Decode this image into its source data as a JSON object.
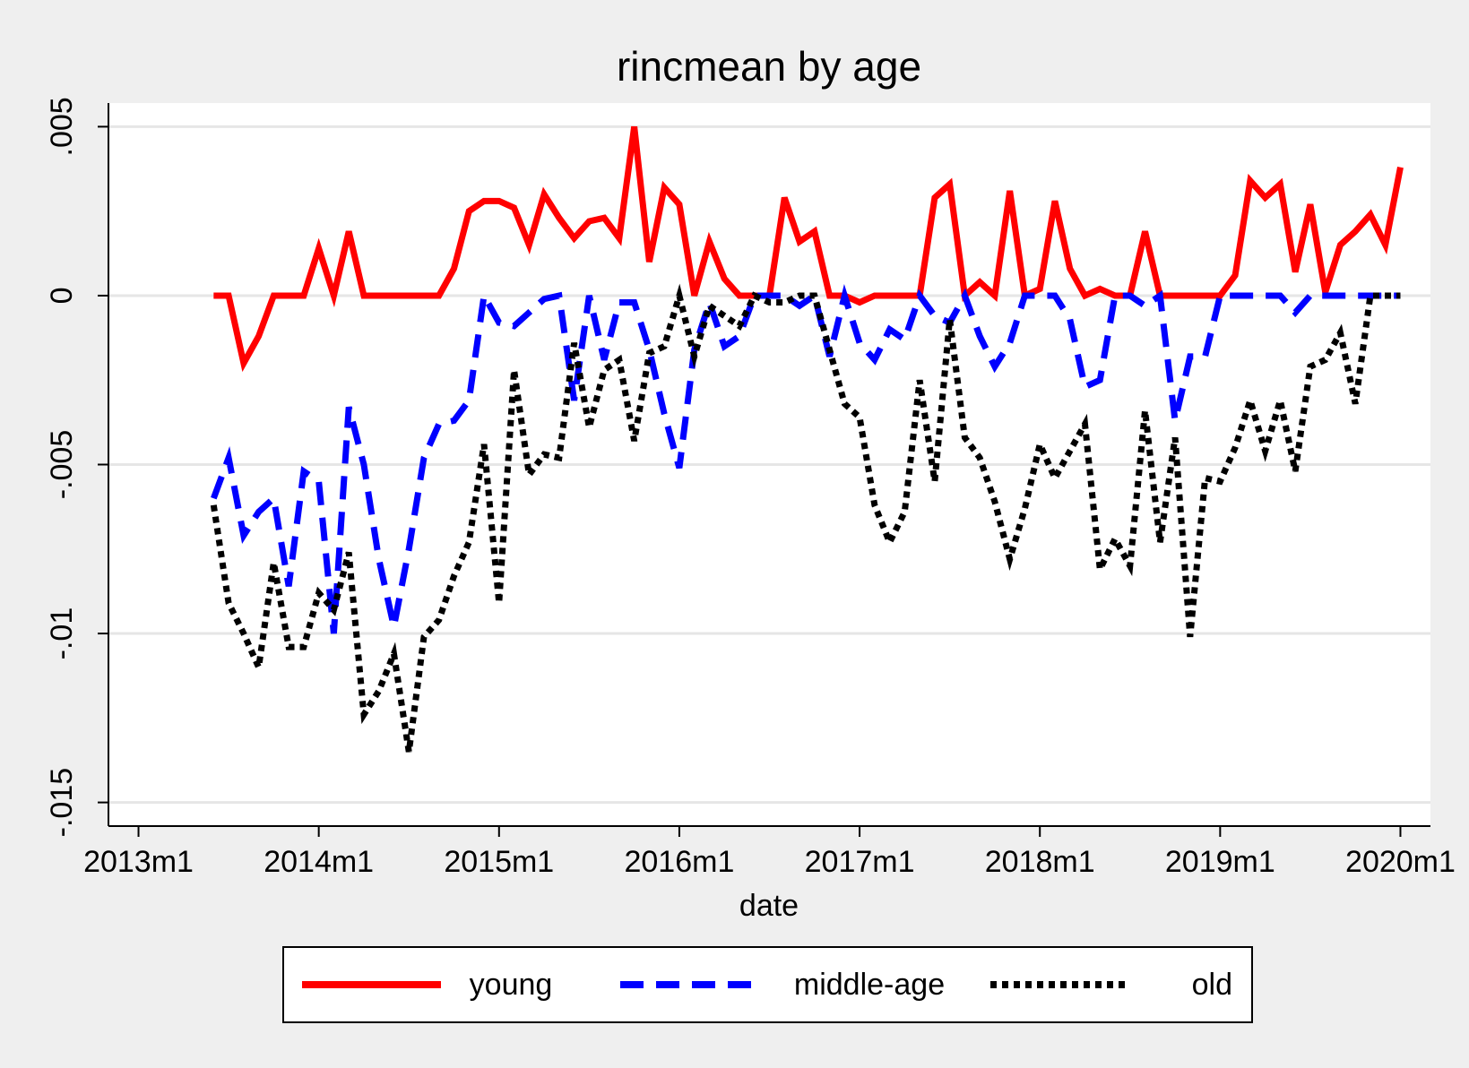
{
  "chart_data": {
    "type": "line",
    "title": "rincmean by age",
    "x_label": "date",
    "x": [
      "2013m6",
      "2013m7",
      "2013m8",
      "2013m9",
      "2013m10",
      "2013m11",
      "2013m12",
      "2014m1",
      "2014m2",
      "2014m3",
      "2014m4",
      "2014m5",
      "2014m6",
      "2014m7",
      "2014m8",
      "2014m9",
      "2014m10",
      "2014m11",
      "2014m12",
      "2015m1",
      "2015m2",
      "2015m3",
      "2015m4",
      "2015m5",
      "2015m6",
      "2015m7",
      "2015m8",
      "2015m9",
      "2015m10",
      "2015m11",
      "2015m12",
      "2016m1",
      "2016m2",
      "2016m3",
      "2016m4",
      "2016m5",
      "2016m6",
      "2016m7",
      "2016m8",
      "2016m9",
      "2016m10",
      "2016m11",
      "2016m12",
      "2017m1",
      "2017m2",
      "2017m3",
      "2017m4",
      "2017m5",
      "2017m6",
      "2017m7",
      "2017m8",
      "2017m9",
      "2017m10",
      "2017m11",
      "2017m12",
      "2018m1",
      "2018m2",
      "2018m3",
      "2018m4",
      "2018m5",
      "2018m6",
      "2018m7",
      "2018m8",
      "2018m9",
      "2018m10",
      "2018m11",
      "2018m12",
      "2019m1",
      "2019m2",
      "2019m3",
      "2019m4",
      "2019m5",
      "2019m6",
      "2019m7",
      "2019m8",
      "2019m9",
      "2019m10",
      "2019m11",
      "2019m12",
      "2020m1"
    ],
    "series": [
      {
        "name": "young",
        "color": "#ff0000",
        "dash": "solid",
        "values": [
          0,
          0,
          -0.002,
          -0.0012,
          0,
          0,
          0,
          0.0014,
          0,
          0.0019,
          0,
          0,
          0,
          0,
          0,
          0,
          0.0008,
          0.0025,
          0.0028,
          0.0028,
          0.0026,
          0.0015,
          0.003,
          0.0023,
          0.0017,
          0.0022,
          0.0023,
          0.0017,
          0.005,
          0.001,
          0.0032,
          0.0027,
          0,
          0.0016,
          0.0005,
          0,
          0,
          0,
          0.0029,
          0.0016,
          0.0019,
          0,
          0,
          -0.0002,
          0,
          0,
          0,
          0,
          0.0029,
          0.0033,
          0,
          0.0004,
          0,
          0.0031,
          0,
          0.0002,
          0.0028,
          0.0008,
          0,
          0.0002,
          0,
          0,
          0.0019,
          0,
          0,
          0,
          0,
          0,
          0.0006,
          0.0034,
          0.0029,
          0.0033,
          0.0007,
          0.0027,
          0.0001,
          0.0015,
          0.0019,
          0.0024,
          0.0015,
          0.0038
        ]
      },
      {
        "name": "middle-age",
        "color": "#0000ff",
        "dash": "dashed",
        "values": [
          -0.006,
          -0.0048,
          -0.0071,
          -0.0064,
          -0.006,
          -0.0086,
          -0.0052,
          -0.0055,
          -0.01,
          -0.0033,
          -0.005,
          -0.0078,
          -0.0098,
          -0.0075,
          -0.0048,
          -0.0038,
          -0.0037,
          -0.0031,
          0,
          -0.0008,
          -0.0009,
          -0.0005,
          -0.0001,
          0,
          -0.0031,
          0,
          -0.0019,
          -0.0002,
          -0.0002,
          -0.0016,
          -0.0035,
          -0.0051,
          -0.0016,
          -0.0002,
          -0.0015,
          -0.0012,
          0,
          0,
          0,
          -0.0003,
          0,
          -0.0018,
          0,
          -0.0014,
          -0.0019,
          -0.001,
          -0.0013,
          0,
          -0.0006,
          -0.0008,
          0,
          -0.0012,
          -0.0021,
          -0.0014,
          0,
          0,
          0,
          -0.0007,
          -0.0027,
          -0.0025,
          0,
          0,
          -0.0003,
          0,
          -0.0037,
          -0.0018,
          -0.0018,
          0,
          0,
          0,
          0,
          0,
          -0.0005,
          0,
          0,
          0,
          0,
          0,
          0,
          0
        ]
      },
      {
        "name": "old",
        "color": "#000000",
        "dash": "dotted",
        "values": [
          -0.0062,
          -0.0091,
          -0.01,
          -0.011,
          -0.0079,
          -0.0104,
          -0.0104,
          -0.0088,
          -0.0093,
          -0.0076,
          -0.0124,
          -0.0117,
          -0.0106,
          -0.0135,
          -0.0101,
          -0.0096,
          -0.0083,
          -0.0073,
          -0.0044,
          -0.0091,
          -0.0022,
          -0.0053,
          -0.0047,
          -0.0048,
          -0.0014,
          -0.0039,
          -0.0022,
          -0.0019,
          -0.0043,
          -0.0017,
          -0.0015,
          0,
          -0.0018,
          -0.0003,
          -0.0006,
          -0.0009,
          0,
          -0.0002,
          -0.0002,
          0,
          0,
          -0.0016,
          -0.0032,
          -0.0036,
          -0.0062,
          -0.0073,
          -0.0064,
          -0.0025,
          -0.0055,
          -0.0007,
          -0.0042,
          -0.0048,
          -0.0061,
          -0.0078,
          -0.0063,
          -0.0044,
          -0.0054,
          -0.0046,
          -0.0038,
          -0.0081,
          -0.0072,
          -0.008,
          -0.0034,
          -0.0073,
          -0.0042,
          -0.0101,
          -0.0054,
          -0.0055,
          -0.0045,
          -0.0031,
          -0.0046,
          -0.0031,
          -0.0052,
          -0.0021,
          -0.0019,
          -0.0011,
          -0.0032,
          0,
          0,
          0
        ]
      }
    ],
    "xlim": [
      "2012m11",
      "2020m3"
    ],
    "xticks": [
      "2013m1",
      "2014m1",
      "2015m1",
      "2016m1",
      "2017m1",
      "2018m1",
      "2019m1",
      "2020m1"
    ],
    "ylim": [
      -0.0157,
      0.0057
    ],
    "yticks": [
      {
        "value": 0.005,
        "label": ".005"
      },
      0,
      {
        "value": -0.005,
        "label": "-.005"
      },
      {
        "value": -0.01,
        "label": "-.01"
      },
      {
        "value": -0.015,
        "label": "-.015"
      }
    ],
    "grid": true,
    "legend": "bottom"
  }
}
